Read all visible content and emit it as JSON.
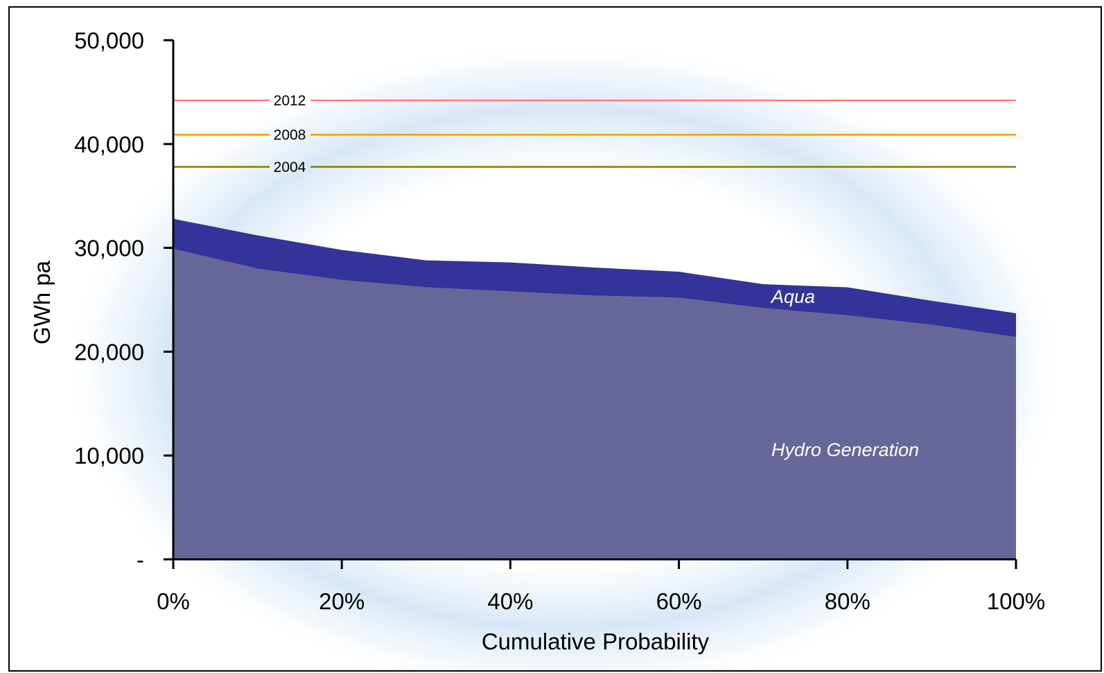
{
  "chart_data": {
    "type": "area",
    "xlabel": "Cumulative Probability",
    "ylabel": "GWh pa",
    "xlim": [
      0,
      100
    ],
    "ylim": [
      0,
      50000
    ],
    "x_ticks": [
      {
        "value": 0,
        "label": "0%"
      },
      {
        "value": 20,
        "label": "20%"
      },
      {
        "value": 40,
        "label": "40%"
      },
      {
        "value": 60,
        "label": "60%"
      },
      {
        "value": 80,
        "label": "80%"
      },
      {
        "value": 100,
        "label": "100%"
      }
    ],
    "y_ticks": [
      {
        "value": 0,
        "label": "-"
      },
      {
        "value": 10000,
        "label": "10,000"
      },
      {
        "value": 20000,
        "label": "20,000"
      },
      {
        "value": 30000,
        "label": "30,000"
      },
      {
        "value": 40000,
        "label": "40,000"
      },
      {
        "value": 50000,
        "label": "50,000"
      }
    ],
    "x": [
      0,
      10,
      20,
      30,
      40,
      50,
      60,
      70,
      80,
      90,
      100
    ],
    "series": [
      {
        "name": "Hydro Generation",
        "color": "#666699",
        "values": [
          29900,
          28000,
          26900,
          26200,
          25800,
          25400,
          25200,
          24200,
          23500,
          22600,
          21400
        ]
      },
      {
        "name": "Aqua",
        "color": "#333399",
        "values": [
          2900,
          3200,
          2900,
          2600,
          2800,
          2700,
          2500,
          2300,
          2700,
          2300,
          2300
        ]
      }
    ],
    "reference_lines": [
      {
        "label": "2012",
        "value": 44200,
        "color": "#ff8080"
      },
      {
        "label": "2008",
        "value": 40900,
        "color": "#ff9900"
      },
      {
        "label": "2004",
        "value": 37800,
        "color": "#808000"
      }
    ]
  }
}
